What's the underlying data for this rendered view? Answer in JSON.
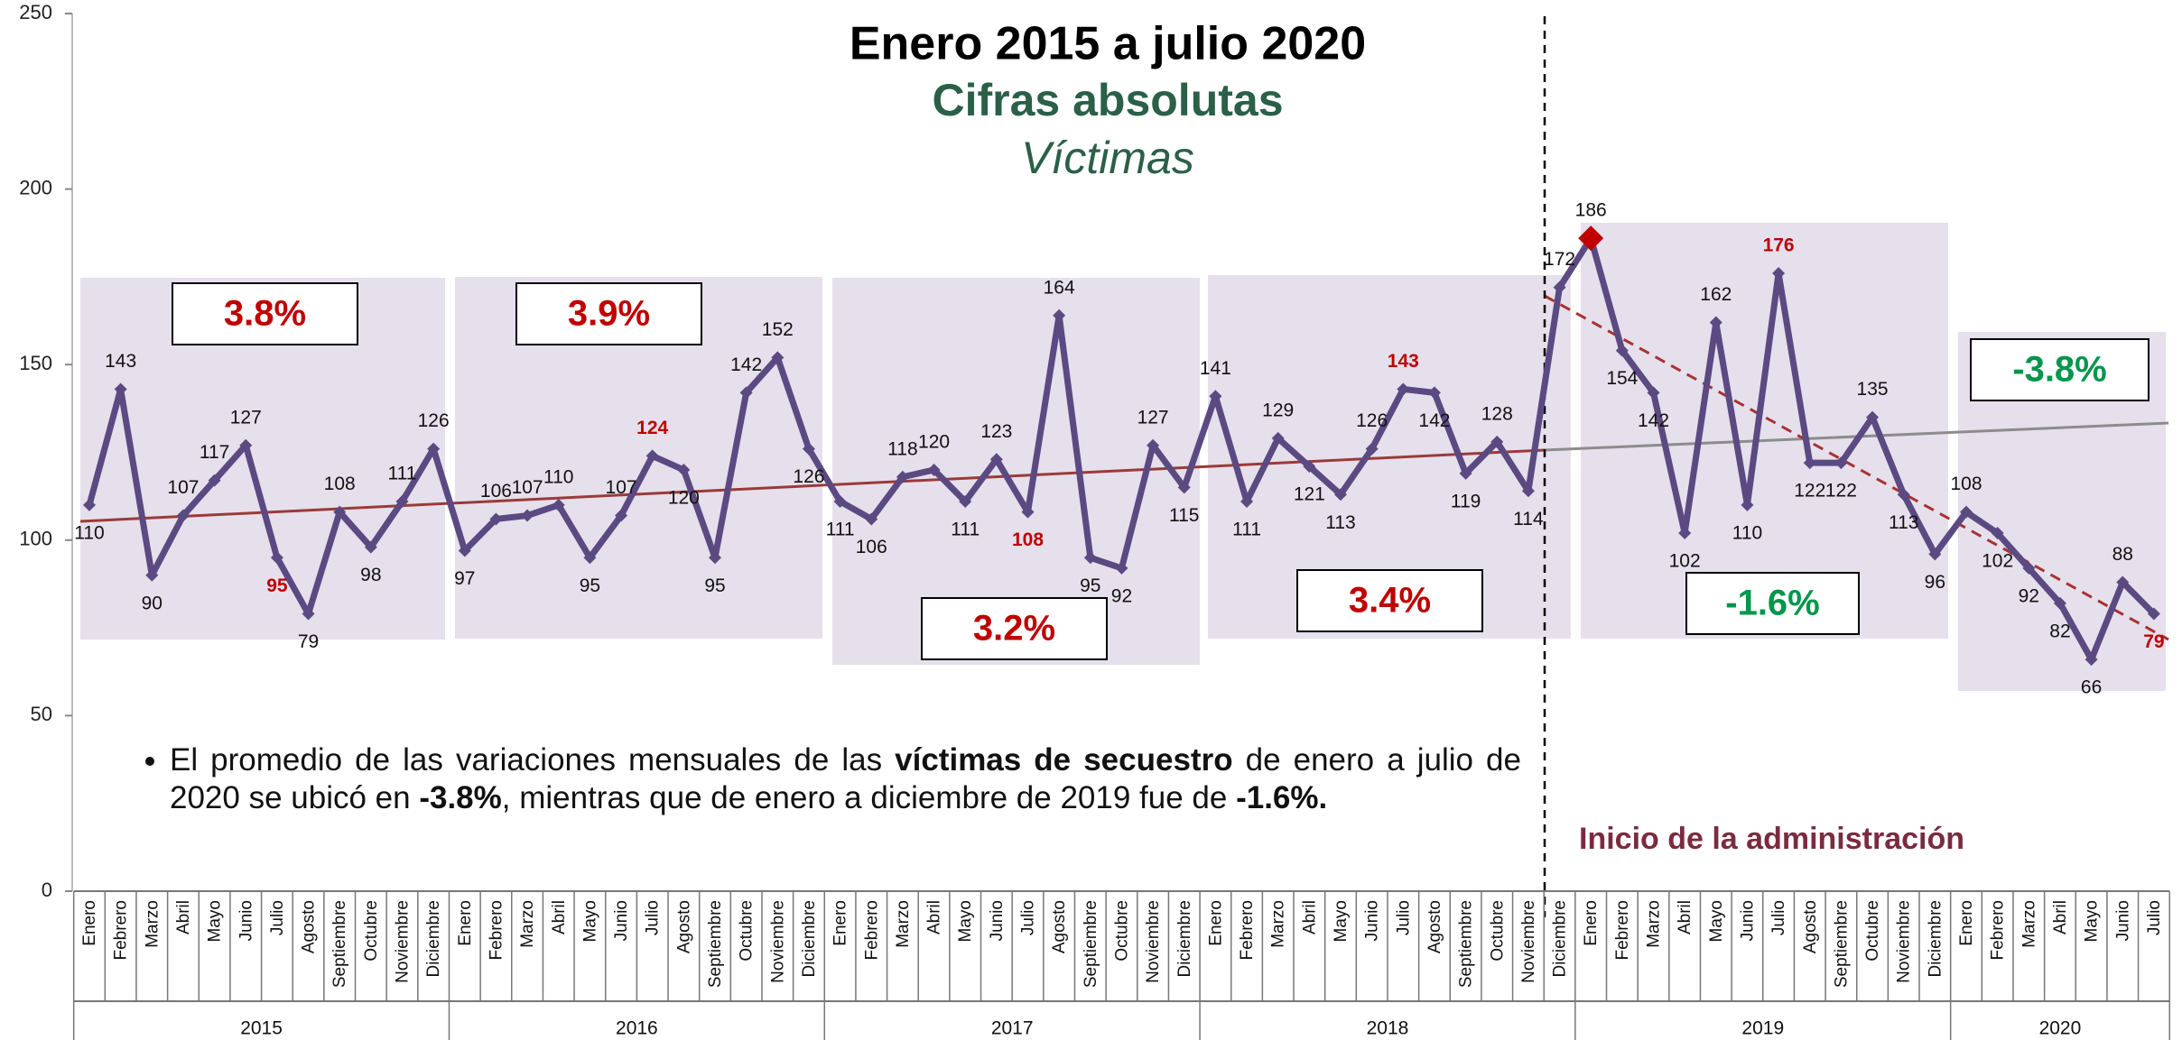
{
  "chart_data": {
    "type": "line",
    "title": "Enero 2015 a julio 2020",
    "subtitle": "Cifras absolutas",
    "subtitle2": "Víctimas",
    "categories": [
      "Enero",
      "Febrero",
      "Marzo",
      "Abril",
      "Mayo",
      "Junio",
      "Julio",
      "Agosto",
      "Septiembre",
      "Octubre",
      "Noviembre",
      "Diciembre",
      "Enero",
      "Febrero",
      "Marzo",
      "Abril",
      "Mayo",
      "Junio",
      "Julio",
      "Agosto",
      "Septiembre",
      "Octubre",
      "Noviembre",
      "Diciembre",
      "Enero",
      "Febrero",
      "Marzo",
      "Abril",
      "Mayo",
      "Junio",
      "Julio",
      "Agosto",
      "Septiembre",
      "Octubre",
      "Noviembre",
      "Diciembre",
      "Enero",
      "Febrero",
      "Marzo",
      "Abril",
      "Mayo",
      "Junio",
      "Julio",
      "Agosto",
      "Septiembre",
      "Octubre",
      "Noviembre",
      "Diciembre",
      "Enero",
      "Febrero",
      "Marzo",
      "Abril",
      "Mayo",
      "Junio",
      "Julio",
      "Agosto",
      "Septiembre",
      "Octubre",
      "Noviembre",
      "Diciembre",
      "Enero",
      "Febrero",
      "Marzo",
      "Abril",
      "Mayo",
      "Junio",
      "Julio"
    ],
    "years": [
      "2015",
      "2016",
      "2017",
      "2018",
      "2019",
      "2020"
    ],
    "series": [
      {
        "name": "Víctimas",
        "color": "#5b4a82",
        "values": [
          110,
          143,
          90,
          107,
          117,
          127,
          95,
          79,
          108,
          98,
          111,
          126,
          97,
          106,
          107,
          110,
          95,
          107,
          124,
          120,
          95,
          142,
          152,
          126,
          111,
          106,
          118,
          120,
          111,
          123,
          108,
          164,
          95,
          92,
          127,
          115,
          141,
          111,
          129,
          121,
          113,
          126,
          143,
          142,
          119,
          128,
          114,
          172,
          186,
          154,
          142,
          102,
          162,
          110,
          176,
          122,
          122,
          135,
          113,
          96,
          108,
          102,
          92,
          82,
          66,
          88,
          79
        ]
      }
    ],
    "ylim": [
      0,
      250
    ],
    "yticks": [
      0,
      50,
      100,
      150,
      200,
      250
    ],
    "period_variations": [
      "3.8%",
      "3.9%",
      "3.2%",
      "3.4%",
      "-1.6%",
      "-3.8%"
    ],
    "positive_color": "#c00000",
    "negative_color": "#00964b",
    "highlight_color": "#c00000",
    "marker_max_color": "#c00000",
    "administration_label": "Inicio de la administración",
    "note": [
      {
        "text": "El promedio de las variaciones mensuales de las "
      },
      {
        "text": "víctimas de secuestro",
        "bold": true
      },
      {
        "text": " de enero a julio de 2020 se ubicó en "
      },
      {
        "text": "-3.8%",
        "bold": true
      },
      {
        "text": ", mientras que de enero a diciembre de 2019 fue de "
      },
      {
        "text": "-1.6%.",
        "bold": true
      }
    ]
  }
}
